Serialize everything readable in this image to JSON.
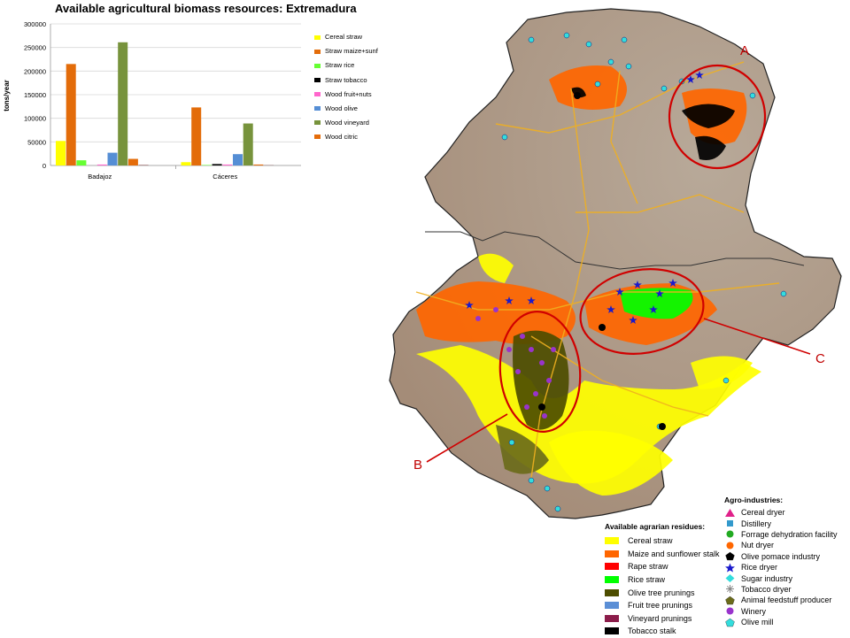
{
  "chart_data": {
    "type": "bar",
    "title": "Available agricultural biomass resources: Extremadura",
    "ylabel": "tons/year",
    "xlabel": "",
    "ylim": [
      0,
      300000
    ],
    "yticks": [
      "0",
      "50000",
      "100000",
      "150000",
      "200000",
      "250000",
      "300000"
    ],
    "categories": [
      "Badajoz",
      "Cáceres"
    ],
    "legend_position": "right",
    "grid": true,
    "series": [
      {
        "name": "Cereal straw",
        "color": "#ffff00",
        "values": [
          52000,
          7000
        ]
      },
      {
        "name": "Straw maize+sunf",
        "color": "#e36c0a",
        "values": [
          215000,
          123000
        ]
      },
      {
        "name": "Straw rice",
        "color": "#66ff33",
        "values": [
          11000,
          1000
        ]
      },
      {
        "name": "Straw tobacco",
        "color": "#000000",
        "values": [
          0,
          3000
        ]
      },
      {
        "name": "Wood fruit+nuts",
        "color": "#ff66cc",
        "values": [
          2000,
          2000
        ]
      },
      {
        "name": "Wood olive",
        "color": "#558ed5",
        "values": [
          27000,
          24000
        ]
      },
      {
        "name": "Wood vineyard",
        "color": "#77933c",
        "values": [
          261000,
          89000
        ]
      },
      {
        "name": "Wood citric",
        "color": "#e46c0a",
        "values": [
          14000,
          2000
        ]
      },
      {
        "name": "",
        "color": "#7f3f3f",
        "values": [
          1000,
          500
        ]
      }
    ],
    "legend_entries": [
      "Cereal straw",
      "Straw maize+sunf",
      "Straw rice",
      "Straw tobacco",
      "Wood fruit+nuts",
      "Wood olive",
      "Wood vineyard",
      "Wood citric"
    ]
  },
  "map": {
    "labels": [
      "A",
      "B",
      "C"
    ],
    "label_color": "#c00000",
    "residues_legend": {
      "title": "Available agrarian residues:",
      "items": [
        {
          "label": "Cereal straw",
          "color": "#ffff00"
        },
        {
          "label": "Maize and sunflower stalk",
          "color": "#ff6600"
        },
        {
          "label": "Rape straw",
          "color": "#ff0000"
        },
        {
          "label": "Rice straw",
          "color": "#00ff00"
        },
        {
          "label": "Olive tree prunings",
          "color": "#4d4d00"
        },
        {
          "label": "Fruit tree prunings",
          "color": "#5b8fd6"
        },
        {
          "label": "Vineyard prunings",
          "color": "#8b1c4a"
        },
        {
          "label": "Tobacco stalk",
          "color": "#000000"
        }
      ]
    },
    "agro_legend": {
      "title": "Agro-industries:",
      "items": [
        {
          "label": "Cereal dryer",
          "icon": "triangle-icon",
          "color": "#e0218a"
        },
        {
          "label": "Distillery",
          "icon": "square-icon",
          "color": "#3399cc"
        },
        {
          "label": "Forrage dehydration facility",
          "icon": "circle-icon",
          "color": "#22aa22"
        },
        {
          "label": "Nut dryer",
          "icon": "circle-icon",
          "color": "#ff6600"
        },
        {
          "label": "Olive pomace industry",
          "icon": "pentagon-icon",
          "color": "#000000"
        },
        {
          "label": "Rice dryer",
          "icon": "star-icon",
          "color": "#1a1acc"
        },
        {
          "label": "Sugar industry",
          "icon": "diamond-icon",
          "color": "#33dddd"
        },
        {
          "label": "Tobacco dryer",
          "icon": "asterisk-icon",
          "color": "#888888"
        },
        {
          "label": "Animal feedstuff producer",
          "icon": "pentagon-icon",
          "color": "#6b6b1a"
        },
        {
          "label": "Winery",
          "icon": "circle-icon",
          "color": "#9933cc"
        },
        {
          "label": "Olive mill",
          "icon": "pentagon-icon",
          "color": "#33dddd"
        }
      ]
    }
  }
}
